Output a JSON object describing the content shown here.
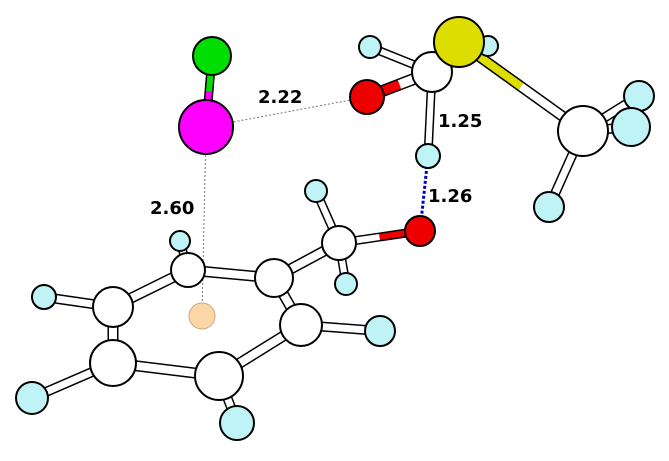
{
  "distance_labels": {
    "cl_o": "2.22",
    "h_transfer_upper": "1.25",
    "h_transfer_lower": "1.26",
    "cl_ring": "2.60"
  },
  "colors": {
    "carbon": "#ffffff",
    "hydrogen": "#bff3f5",
    "oxygen": "#ee0000",
    "sulfur": "#dddd00",
    "chlorine": "#ff00ff",
    "fluorine": "#00dd00",
    "ring_centroid": "#fbd7a8",
    "h_bond": "#0000cc",
    "contact_line": "#777777",
    "bond_fill": "#ffffff",
    "outline": "#000000"
  },
  "atom_types": {
    "carbon": "carbon-atom",
    "hydrogen": "hydrogen-atom",
    "oxygen": "oxygen-atom",
    "sulfur": "sulfur-atom",
    "chlorine": "chlorine-atom",
    "fluorine": "fluorine-atom",
    "centroid": "ring-centroid-marker"
  }
}
